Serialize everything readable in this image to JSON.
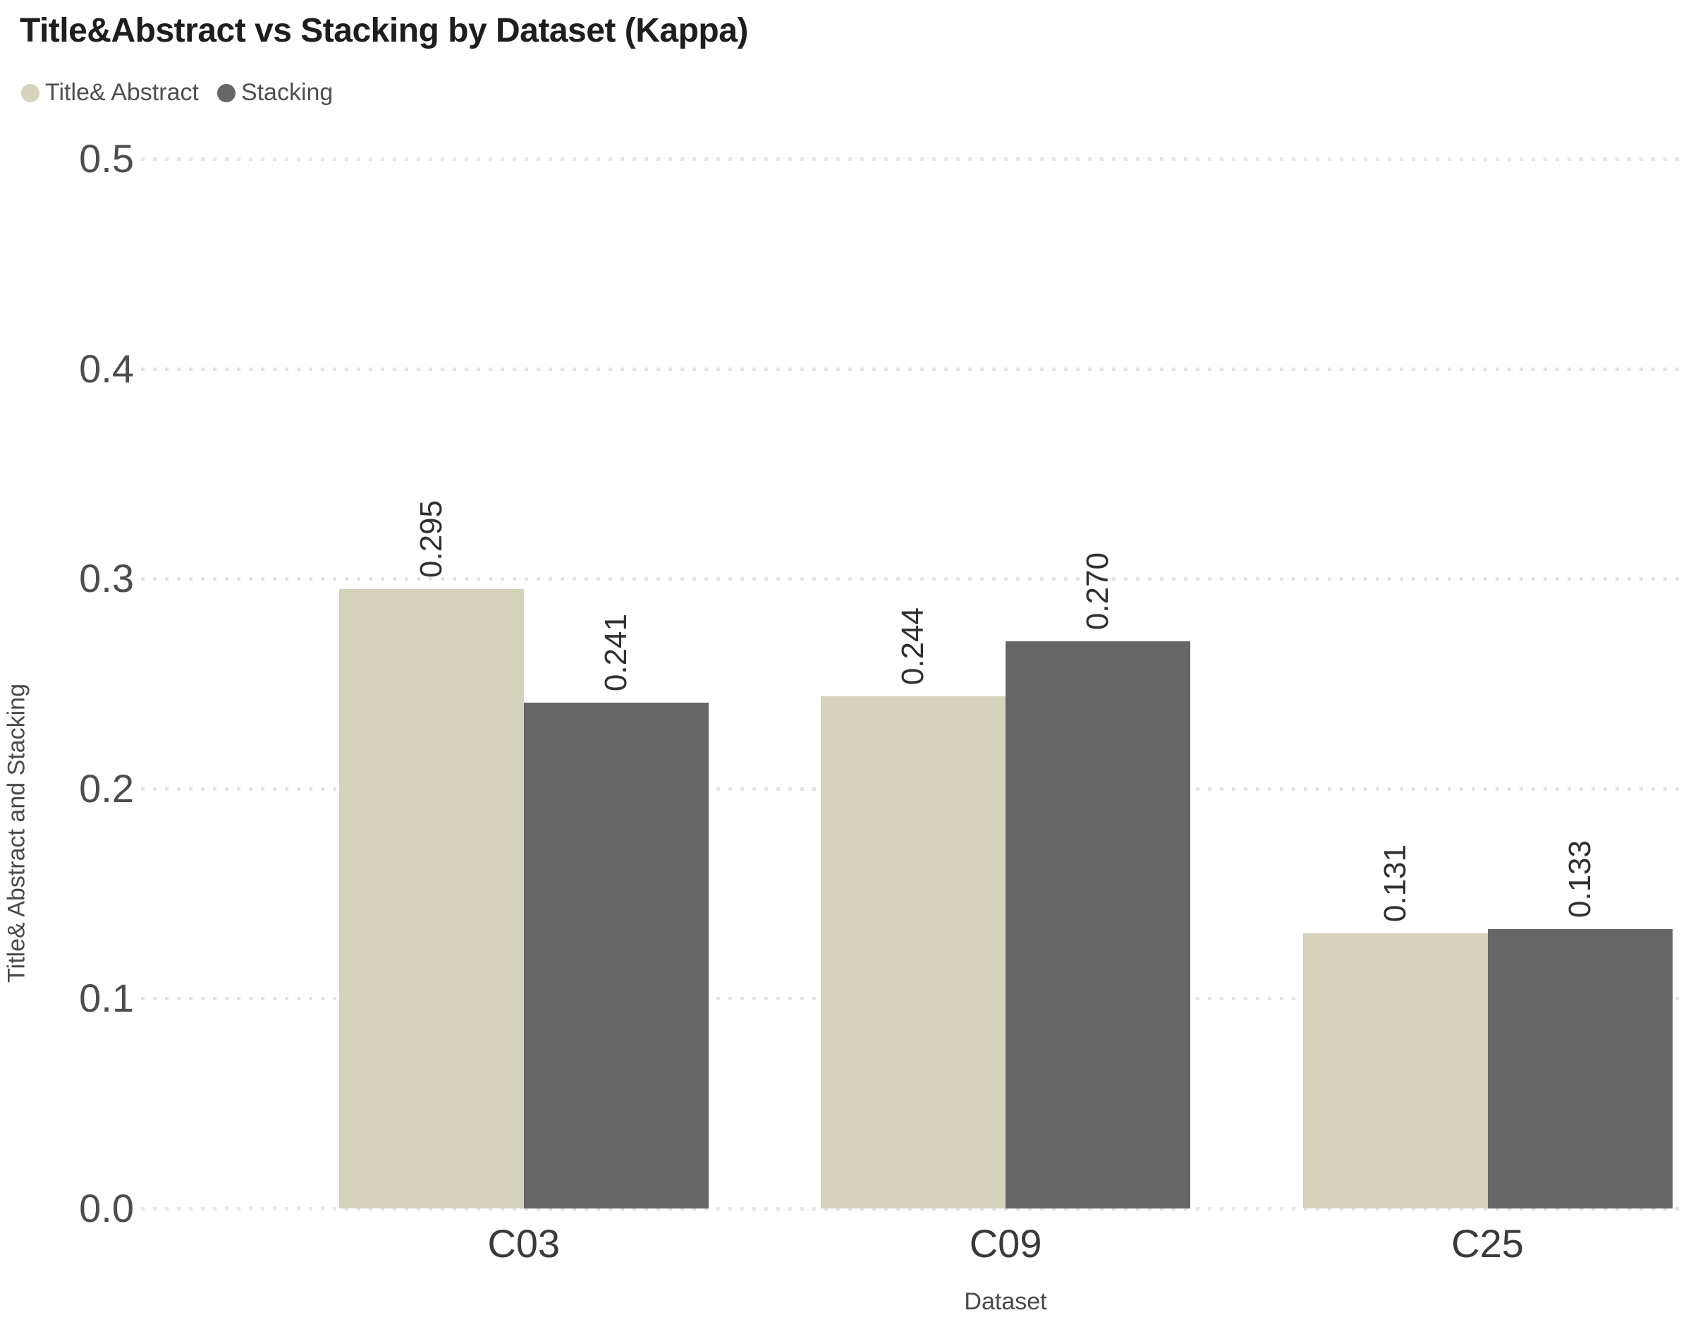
{
  "chart_data": {
    "type": "bar",
    "title": "Title&Abstract vs Stacking by Dataset (Kappa)",
    "categories": [
      "C03",
      "C09",
      "C25"
    ],
    "series": [
      {
        "name": "Title& Abstract",
        "color": "#d6d3bc",
        "values": [
          0.295,
          0.244,
          0.131
        ]
      },
      {
        "name": "Stacking",
        "color": "#666666",
        "values": [
          0.241,
          0.27,
          0.133
        ]
      }
    ],
    "xlabel": "Dataset",
    "ylabel": "Title& Abstract and Stacking",
    "ylim": [
      0,
      0.5
    ],
    "yticks": [
      "0.0",
      "0.1",
      "0.2",
      "0.3",
      "0.4",
      "0.5"
    ],
    "grid": "horizontal dotted lines at every 0.1",
    "legend_position": "top-left",
    "value_labels": "3-decimal values rotated vertically above each bar",
    "colors": {
      "background": "#ffffff",
      "gridline": "#e4e4e4",
      "title_text": "#1e1e1e",
      "tick_text": "#4d4d4d"
    }
  }
}
